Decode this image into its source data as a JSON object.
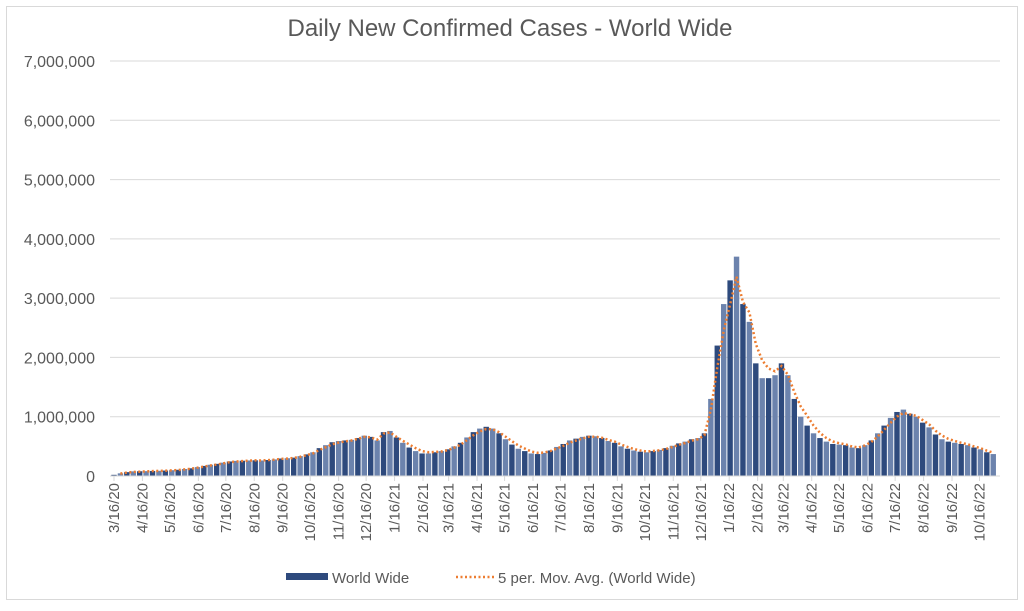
{
  "chart_data": {
    "type": "bar",
    "title": "Daily New Confirmed Cases - World Wide",
    "xlabel": "",
    "ylabel": "",
    "ylim": [
      0,
      7000000
    ],
    "y_ticks": [
      "0",
      "1,000,000",
      "2,000,000",
      "3,000,000",
      "4,000,000",
      "5,000,000",
      "6,000,000",
      "7,000,000"
    ],
    "y_tick_values": [
      0,
      1000000,
      2000000,
      3000000,
      4000000,
      5000000,
      6000000,
      7000000
    ],
    "x_tick_labels": [
      "3/16/20",
      "4/16/20",
      "5/16/20",
      "6/16/20",
      "7/16/20",
      "8/16/20",
      "9/16/20",
      "10/16/20",
      "11/16/20",
      "12/16/20",
      "1/16/21",
      "2/16/21",
      "3/16/21",
      "4/16/21",
      "5/16/21",
      "6/16/21",
      "7/16/21",
      "8/16/21",
      "9/16/21",
      "10/16/21",
      "11/16/21",
      "12/16/21",
      "1/16/22",
      "2/16/22",
      "3/16/22",
      "4/16/22",
      "5/16/22",
      "6/16/22",
      "7/16/22",
      "8/16/22",
      "9/16/22",
      "10/16/22"
    ],
    "x_start": "3/16/20",
    "x_step_days": 7,
    "value_unit": 1000,
    "grid": true,
    "legend_position": "bottom",
    "series": [
      {
        "name": "World Wide",
        "kind": "bar",
        "color": "#2e4a7d",
        "values": [
          20,
          45,
          65,
          78,
          80,
          82,
          85,
          88,
          92,
          98,
          105,
          118,
          130,
          150,
          170,
          190,
          205,
          225,
          245,
          255,
          258,
          262,
          265,
          262,
          270,
          280,
          295,
          300,
          310,
          335,
          365,
          400,
          470,
          520,
          570,
          590,
          600,
          610,
          640,
          680,
          660,
          600,
          740,
          760,
          650,
          560,
          480,
          420,
          380,
          380,
          400,
          420,
          450,
          500,
          560,
          650,
          740,
          800,
          830,
          800,
          720,
          620,
          530,
          460,
          420,
          380,
          370,
          390,
          430,
          490,
          540,
          600,
          630,
          660,
          680,
          670,
          640,
          590,
          560,
          500,
          460,
          430,
          410,
          400,
          420,
          440,
          470,
          510,
          550,
          580,
          620,
          640,
          720,
          1300,
          2200,
          2900,
          3300,
          3700,
          2900,
          2600,
          1900,
          1650,
          1650,
          1700,
          1900,
          1700,
          1300,
          1000,
          850,
          720,
          640,
          580,
          540,
          530,
          520,
          480,
          470,
          520,
          600,
          720,
          850,
          980,
          1080,
          1120,
          1050,
          1000,
          900,
          820,
          700,
          620,
          580,
          560,
          540,
          520,
          480,
          450,
          400,
          370
        ]
      },
      {
        "name": "5 per. Mov. Avg. (World Wide)",
        "kind": "line",
        "color": "#ed7d31"
      }
    ]
  }
}
